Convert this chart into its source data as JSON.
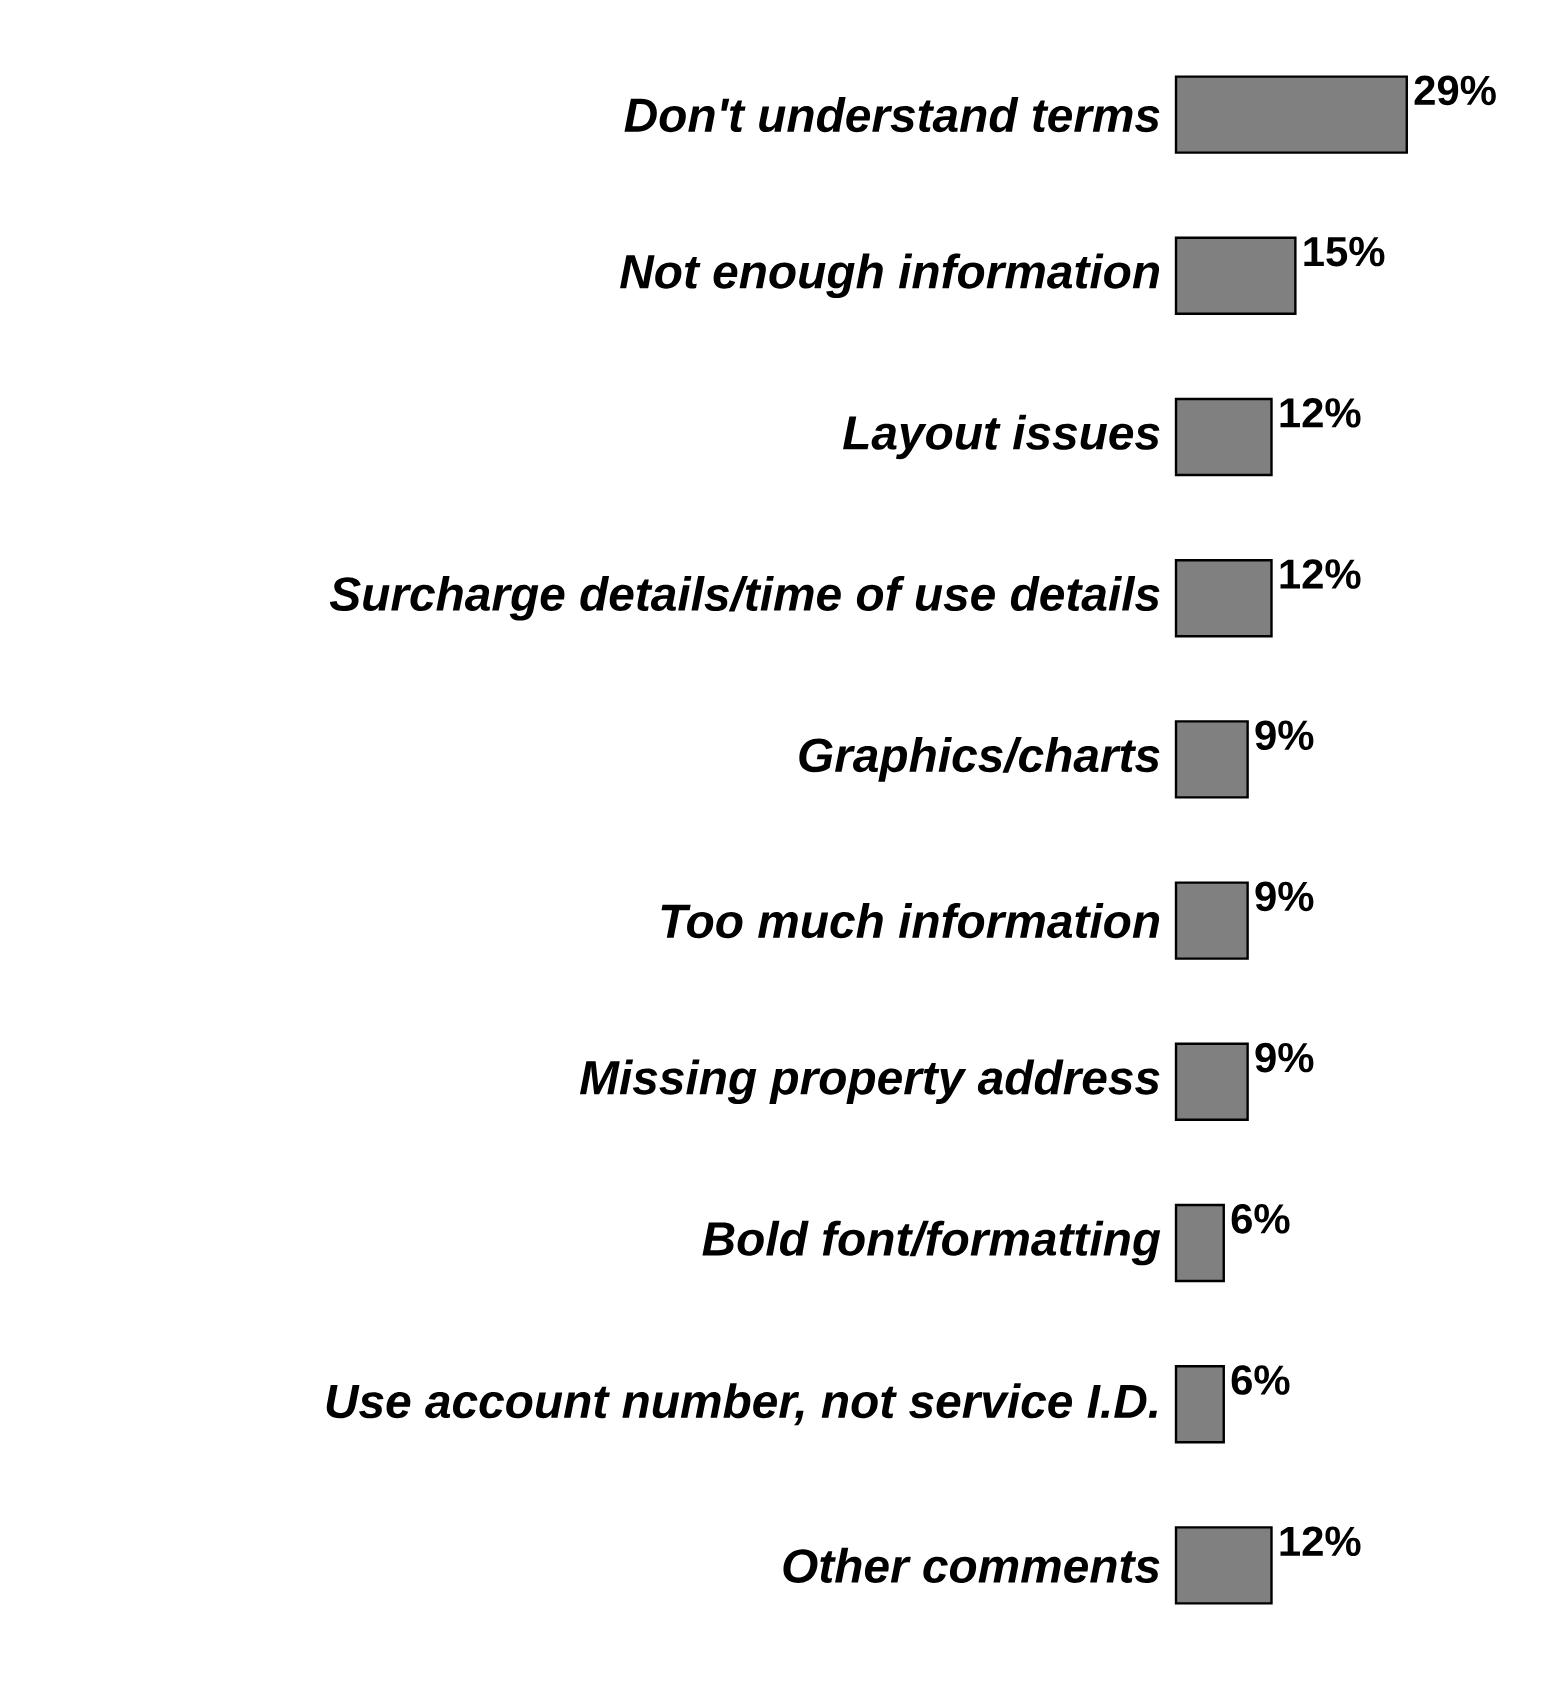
{
  "chart_data": {
    "type": "bar",
    "orientation": "horizontal",
    "categories": [
      "Don't understand terms",
      "Not enough information",
      "Layout issues",
      "Surcharge details/time of use details",
      "Graphics/charts",
      "Too much information",
      "Missing property address",
      "Bold font/formatting",
      "Use account number, not service I.D.",
      "Other comments"
    ],
    "values": [
      29,
      15,
      12,
      12,
      9,
      9,
      9,
      6,
      6,
      12
    ],
    "value_labels": [
      "29%",
      "15%",
      "12%",
      "12%",
      "9%",
      "9%",
      "9%",
      "6%",
      "6%",
      "12%"
    ],
    "color": "#808080"
  }
}
